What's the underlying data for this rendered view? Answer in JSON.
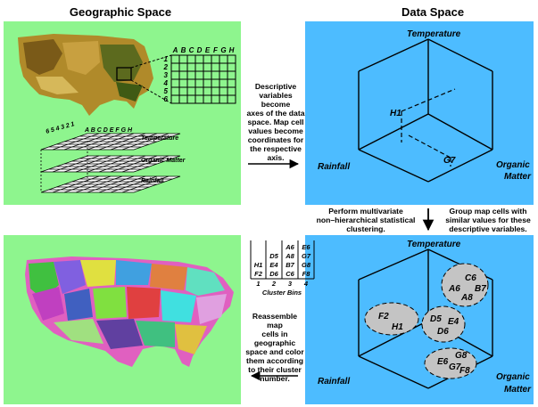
{
  "titles": {
    "geographic": "Geographic Space",
    "data": "Data Space"
  },
  "grid": {
    "columns": [
      "A",
      "B",
      "C",
      "D",
      "E",
      "F",
      "G",
      "H"
    ],
    "rows": [
      "1",
      "2",
      "3",
      "4",
      "5",
      "6"
    ],
    "stack_rows_label": "6 5 4 3 2 1",
    "stack_cols_label": "A B C D E F G H"
  },
  "layers": [
    "Temperature",
    "Organic Matter",
    "Rainfall"
  ],
  "axes": {
    "temperature": "Temperature",
    "rainfall": "Rainfall",
    "organic_line1": "Organic",
    "organic_line2": "Matter"
  },
  "points": {
    "h1": "H1",
    "g7": "G7"
  },
  "captions": {
    "descriptive": [
      "Descriptive",
      "variables become",
      "axes of the data",
      "space.  Map cell",
      "values become",
      "coordinates for",
      "the respective",
      "axis."
    ],
    "multivariate": [
      "Perform multivariate",
      "non–hierarchical statistical",
      "clustering."
    ],
    "group": [
      "Group map cells with",
      "similar values for these",
      "descriptive variables."
    ],
    "reassemble": [
      "Reassemble map",
      "cells in geographic",
      "space and color",
      "them according",
      "to their cluster",
      "number."
    ]
  },
  "cluster_bins": {
    "columns": [
      {
        "number": "1",
        "cells": [
          "H1",
          "F2"
        ]
      },
      {
        "number": "2",
        "cells": [
          "D5",
          "E4",
          "D6"
        ]
      },
      {
        "number": "3",
        "cells": [
          "A6",
          "A8",
          "B7",
          "C6"
        ]
      },
      {
        "number": "4",
        "cells": [
          "E6",
          "G7",
          "G8",
          "F8"
        ]
      }
    ],
    "label": "Cluster Bins"
  },
  "clusters": [
    {
      "id": "c3",
      "labels": [
        "C6",
        "A6",
        "B7",
        "A8"
      ]
    },
    {
      "id": "c1",
      "labels": [
        "F2",
        "H1"
      ]
    },
    {
      "id": "c2",
      "labels": [
        "D5",
        "E4",
        "D6"
      ]
    },
    {
      "id": "c4",
      "labels": [
        "G8",
        "E6",
        "G7",
        "F8"
      ]
    }
  ]
}
